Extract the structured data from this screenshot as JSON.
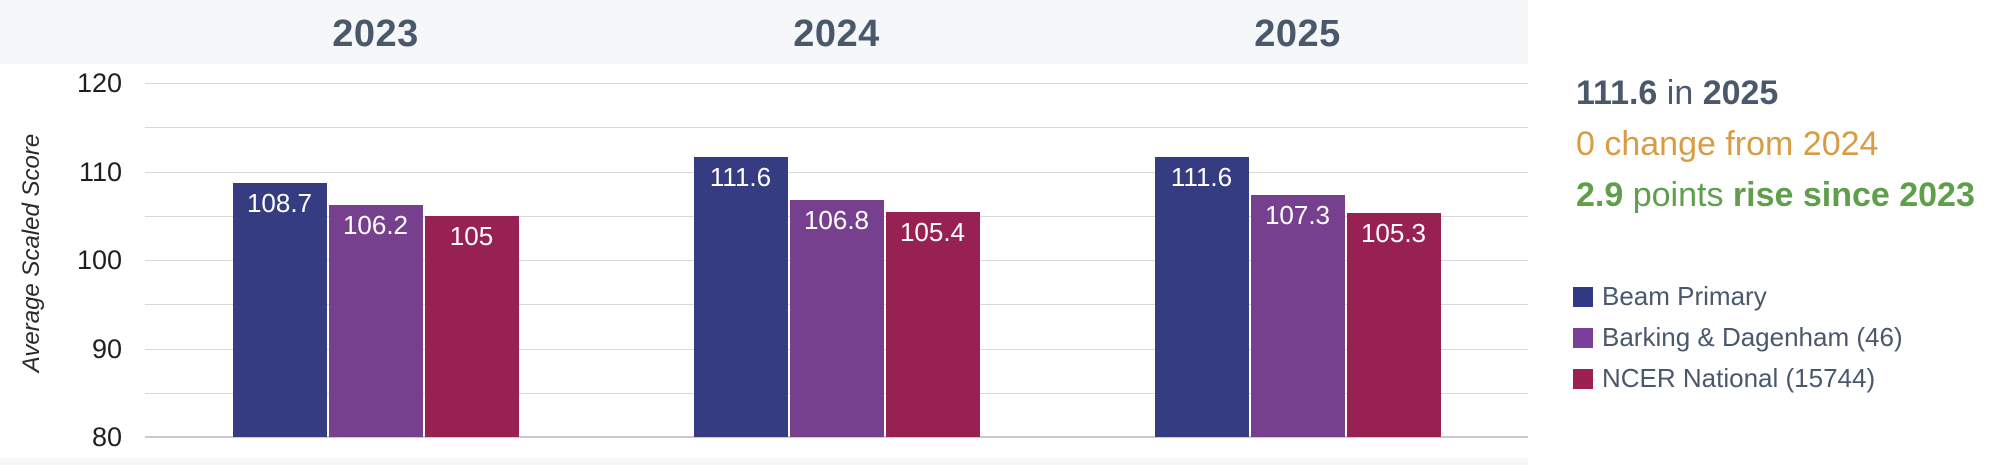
{
  "chart_data": {
    "type": "bar",
    "title": "",
    "xlabel": "",
    "ylabel": "Average Scaled Score",
    "categories": [
      "2023",
      "2024",
      "2025"
    ],
    "series": [
      {
        "name": "Beam Primary",
        "color": "#353c81",
        "values": [
          108.7,
          111.6,
          111.6
        ],
        "labels": [
          "108.7",
          "111.6",
          "111.6"
        ]
      },
      {
        "name": "Barking & Dagenham (46)",
        "color": "#77408f",
        "values": [
          106.2,
          106.8,
          107.3
        ],
        "labels": [
          "106.2",
          "106.8",
          "107.3"
        ]
      },
      {
        "name": "NCER National (15744)",
        "color": "#972152",
        "values": [
          105.0,
          105.4,
          105.3
        ],
        "labels": [
          "105",
          "105.4",
          "105.3"
        ]
      }
    ],
    "ylim": [
      80,
      120
    ],
    "yticks": [
      80,
      90,
      100,
      110,
      120
    ],
    "grid_step": 5,
    "grid": true,
    "legend_position": "right"
  },
  "summary": {
    "line1": {
      "value": "111.6",
      "mid": " in ",
      "year": "2025",
      "color": "#4a586c"
    },
    "line2": {
      "text": "0 change from 2024",
      "color": "#d89c44"
    },
    "line3": {
      "value": "2.9",
      "mid": " points ",
      "rest": "rise since 2023",
      "color": "#5f9e4b"
    }
  },
  "legend": {
    "items": [
      {
        "label": "Beam Primary",
        "color": "#333a84"
      },
      {
        "label": "Barking & Dagenham (46)",
        "color": "#7a3f98"
      },
      {
        "label": "NCER National (15744)",
        "color": "#9d2055"
      }
    ]
  },
  "colors": {
    "page_band": "#f6f7f9",
    "card": "#ffffff",
    "group_title": "#4a586c",
    "gridline": "#d9d9dd",
    "baseline": "#c9c9cf",
    "tick_text": "#1f1f1f",
    "bar_label_text": "#ffffff"
  }
}
